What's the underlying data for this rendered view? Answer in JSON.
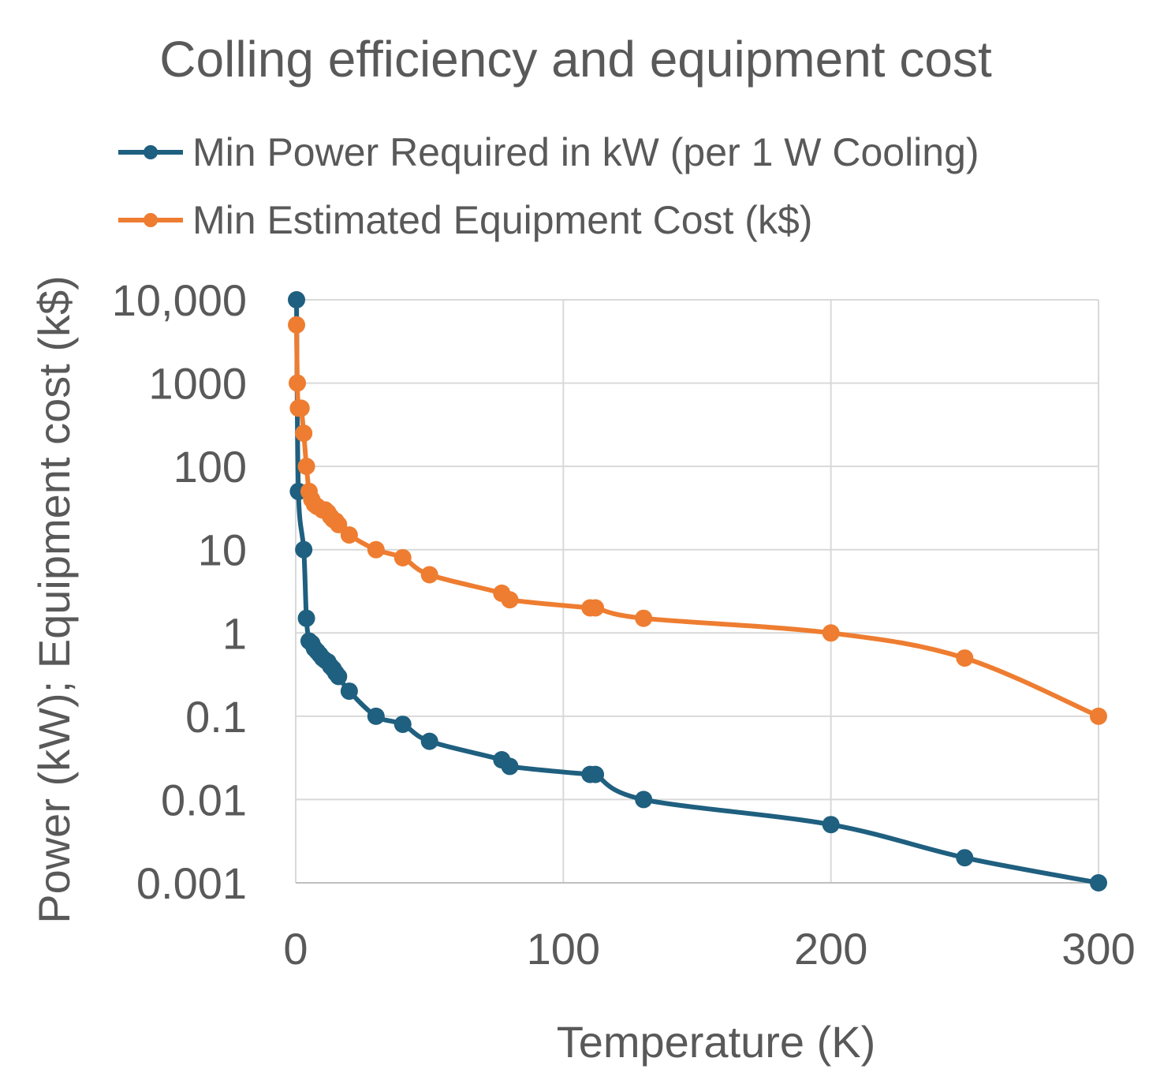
{
  "chart_data": {
    "type": "line",
    "title": "Colling efficiency and equipment cost",
    "xlabel": "Temperature (K)",
    "ylabel": "Power (kW); Equipment cost (k$)",
    "xlim": [
      0,
      300
    ],
    "ylim": [
      0.001,
      10000
    ],
    "yscale": "log",
    "grid": true,
    "legend_position": "top",
    "x_ticks": [
      "0",
      "100",
      "200",
      "300"
    ],
    "x_tick_values": [
      0,
      100,
      200,
      300
    ],
    "y_ticks": [
      "10,000",
      "1000",
      "100",
      "10",
      "1",
      "0.1",
      "0.01",
      "0.001"
    ],
    "y_tick_values": [
      10000,
      1000,
      100,
      10,
      1,
      0.1,
      0.01,
      0.001
    ],
    "series": [
      {
        "name": "Min Power Required in kW (per 1 W Cooling)",
        "color": "#1f5f7f",
        "x": [
          0.3,
          1,
          3,
          4,
          5,
          6,
          7,
          8,
          9,
          10,
          11,
          12,
          13,
          14,
          15,
          16,
          20,
          30,
          40,
          50,
          77,
          80,
          110,
          112,
          130,
          200,
          250,
          300
        ],
        "y": [
          10000,
          50,
          10,
          1.5,
          0.8,
          0.75,
          0.65,
          0.6,
          0.55,
          0.5,
          0.47,
          0.45,
          0.4,
          0.37,
          0.33,
          0.3,
          0.2,
          0.1,
          0.08,
          0.05,
          0.03,
          0.025,
          0.02,
          0.02,
          0.01,
          0.005,
          0.002,
          0.001
        ]
      },
      {
        "name": "Min Estimated Equipment Cost (k$)",
        "color": "#ee7d31",
        "x": [
          0.3,
          0.6,
          1,
          2,
          3,
          4,
          5,
          6,
          7,
          8,
          10,
          11,
          12,
          13,
          14,
          15,
          16,
          20,
          30,
          40,
          50,
          77,
          80,
          110,
          112,
          130,
          200,
          250,
          300
        ],
        "y": [
          5000,
          1000,
          500,
          500,
          250,
          100,
          50,
          40,
          35,
          33,
          30,
          30,
          28,
          25,
          23,
          22,
          20,
          15,
          10,
          8,
          5,
          3,
          2.5,
          2,
          2,
          1.5,
          1,
          0.5,
          0.1
        ]
      }
    ]
  }
}
